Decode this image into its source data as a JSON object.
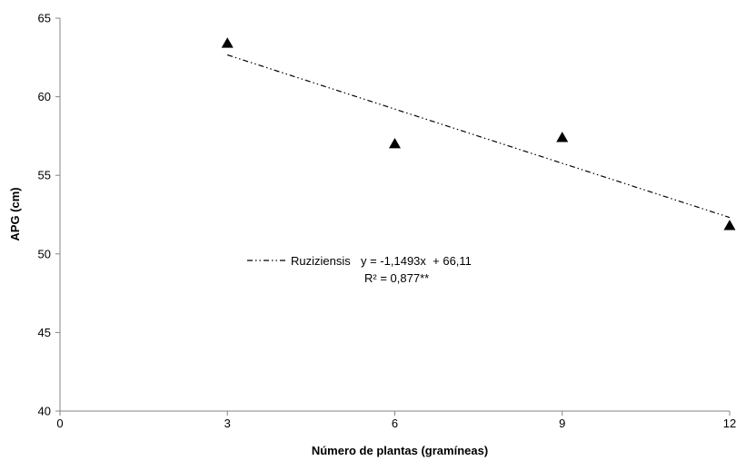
{
  "chart_data": {
    "type": "scatter",
    "xlabel": "Número de plantas (gramíneas)",
    "ylabel": "APG (cm)",
    "xlim": [
      0,
      12
    ],
    "ylim": [
      40,
      65
    ],
    "xticks": [
      0,
      3,
      6,
      9,
      12
    ],
    "yticks": [
      40,
      45,
      50,
      55,
      60,
      65
    ],
    "xtick_labels": [
      "0",
      "3",
      "6",
      "9",
      "12"
    ],
    "ytick_labels": [
      "40",
      "45",
      "50",
      "55",
      "60",
      "65"
    ],
    "grid": false,
    "series": [
      {
        "name": "Ruziziensis",
        "marker": "triangle",
        "color": "#000000",
        "x": [
          3,
          6,
          9,
          12
        ],
        "y": [
          63.4,
          57.0,
          57.4,
          51.8
        ]
      }
    ],
    "trendline": {
      "style": "dash-dot-dot",
      "color": "#000000",
      "slope": -1.1493,
      "intercept": 66.11,
      "x_range": [
        3,
        12
      ],
      "equation_label": "y = -1,1493x  + 66,11",
      "r2_label": "R² = 0,877**"
    },
    "legend": {
      "position": "center-left",
      "label": "Ruziziensis"
    }
  }
}
